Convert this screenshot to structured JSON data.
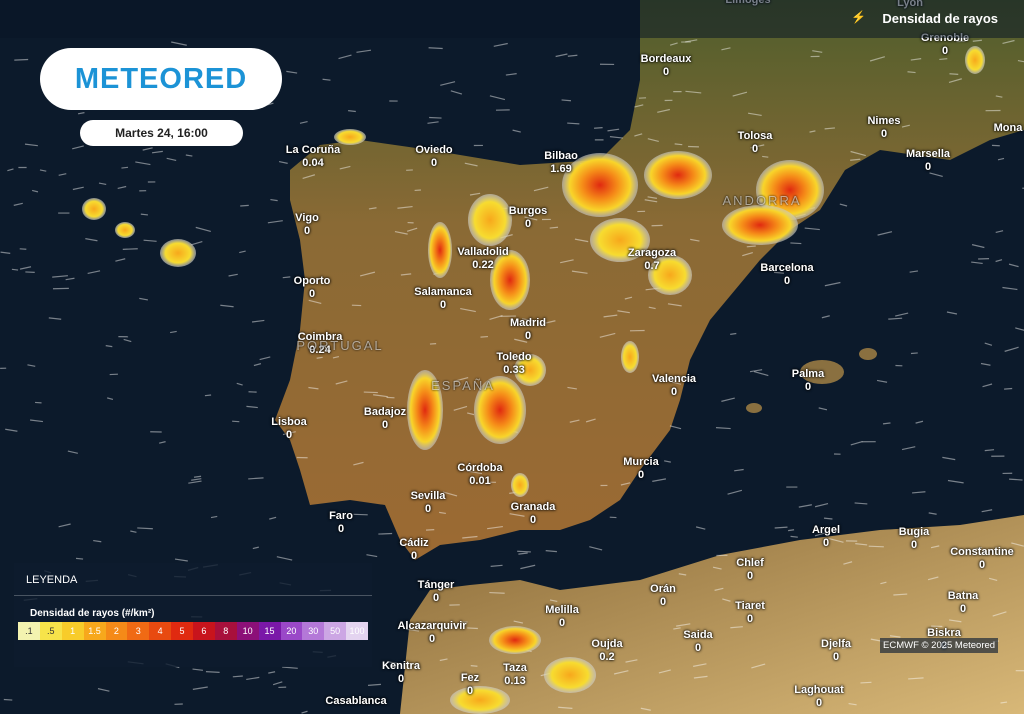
{
  "header": {
    "layer": "Densidad de rayos",
    "logo": "METEORED",
    "time": "Martes 24, 16:00"
  },
  "places": [
    {
      "name": "Limoges"
    },
    {
      "name": "Lyon"
    },
    {
      "name": "Grenoble",
      "value": 0
    },
    {
      "name": "Bordeaux",
      "value": 0
    },
    {
      "name": "Mona"
    },
    {
      "name": "Nimes",
      "value": 0
    },
    {
      "name": "Tolosa",
      "value": 0
    },
    {
      "name": "Marsella",
      "value": 0
    },
    {
      "name": "La Coruña",
      "value": 0.04
    },
    {
      "name": "Oviedo",
      "value": 0
    },
    {
      "name": "Bilbao",
      "value": 1.69
    },
    {
      "name": "Burgos",
      "value": 0
    },
    {
      "name": "Vigo",
      "value": 0
    },
    {
      "name": "Valladolid",
      "value": 0.22
    },
    {
      "name": "Zaragoza",
      "value": 0.7
    },
    {
      "name": "Barcelona",
      "value": 0
    },
    {
      "name": "Oporto",
      "value": 0
    },
    {
      "name": "Salamanca",
      "value": 0
    },
    {
      "name": "Madrid",
      "value": 0
    },
    {
      "name": "Coimbra",
      "value": 0.24
    },
    {
      "name": "Toledo",
      "value": 0.33
    },
    {
      "name": "Palma",
      "value": 0
    },
    {
      "name": "Valencia",
      "value": 0
    },
    {
      "name": "Badajoz",
      "value": 0
    },
    {
      "name": "Lisboa",
      "value": 0
    },
    {
      "name": "Murcia",
      "value": 0
    },
    {
      "name": "Córdoba",
      "value": 0.01
    },
    {
      "name": "Sevilla",
      "value": 0
    },
    {
      "name": "Granada",
      "value": 0
    },
    {
      "name": "Faro",
      "value": 0
    },
    {
      "name": "Argel",
      "value": 0
    },
    {
      "name": "Bugia",
      "value": 0
    },
    {
      "name": "Cádiz",
      "value": 0
    },
    {
      "name": "Constantine",
      "value": 0
    },
    {
      "name": "Chlef",
      "value": 0
    },
    {
      "name": "Tánger",
      "value": 0
    },
    {
      "name": "Orán",
      "value": 0
    },
    {
      "name": "Batna",
      "value": 0
    },
    {
      "name": "Melilla",
      "value": 0
    },
    {
      "name": "Tiaret",
      "value": 0
    },
    {
      "name": "Alcazarquivir",
      "value": 0
    },
    {
      "name": "Biskra",
      "value": 0
    },
    {
      "name": "Saida",
      "value": 0
    },
    {
      "name": "Oujda",
      "value": 0.2
    },
    {
      "name": "Djelfa",
      "value": 0
    },
    {
      "name": "Kenitra",
      "value": 0
    },
    {
      "name": "Taza",
      "value": 0.13
    },
    {
      "name": "Fez",
      "value": 0
    },
    {
      "name": "Laghouat",
      "value": 0
    },
    {
      "name": "Casablanca"
    }
  ],
  "countries": [
    "PORTUGAL",
    "ESPAÑA",
    "ANDORRA"
  ],
  "legend": {
    "title": "LEYENDA",
    "subtitle": "Densidad de rayos (#/km²)",
    "labels": [
      ".1",
      ".5",
      "1",
      "1.5",
      "2",
      "3",
      "4",
      "5",
      "6",
      "8",
      "10",
      "15",
      "20",
      "30",
      "50",
      "100"
    ]
  },
  "credit": "ECMWF © 2025 Meteored"
}
